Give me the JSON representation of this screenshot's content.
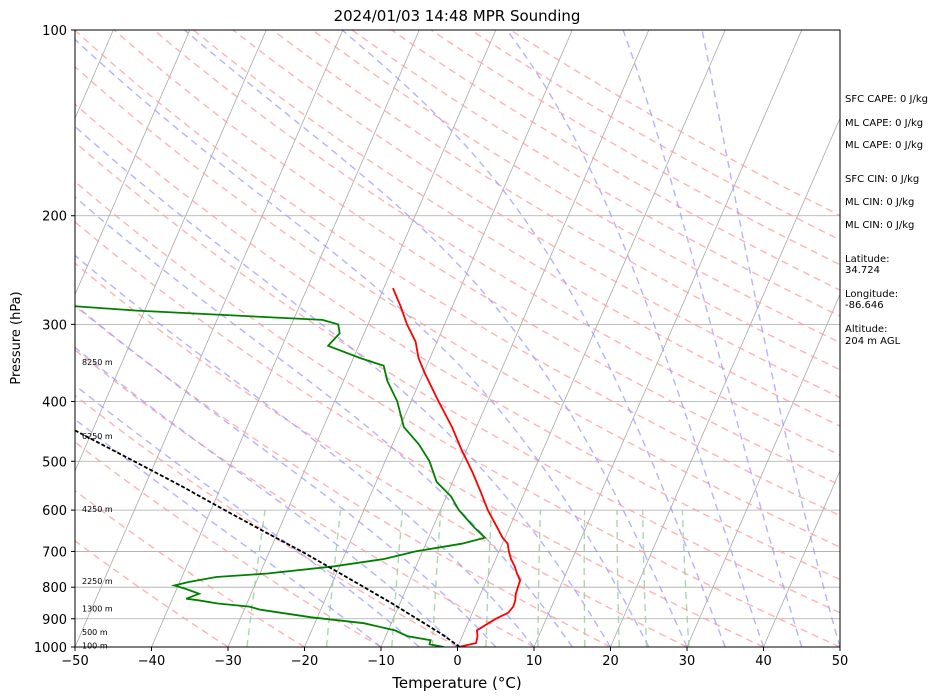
{
  "chart_data": {
    "type": "line",
    "title": "2024/01/03 14:48 MPR Sounding",
    "xlabel": "Temperature (°C)",
    "ylabel": "Pressure (hPa)",
    "xlim": [
      -50,
      50
    ],
    "ylim": [
      1000,
      100
    ],
    "y_scale": "log",
    "x_ticks": [
      -50,
      -40,
      -30,
      -20,
      -10,
      0,
      10,
      20,
      30,
      40,
      50
    ],
    "y_ticks": [
      100,
      200,
      300,
      400,
      500,
      600,
      700,
      800,
      900,
      1000
    ],
    "grid": true,
    "series": [
      {
        "color": "#ff0000",
        "points": [
          {
            "p": 1000,
            "t": 0.2
          },
          {
            "p": 985,
            "t": 2.2
          },
          {
            "p": 960,
            "t": 2.0
          },
          {
            "p": 940,
            "t": 1.6
          },
          {
            "p": 915,
            "t": 2.7
          },
          {
            "p": 900,
            "t": 3.4
          },
          {
            "p": 880,
            "t": 4.7
          },
          {
            "p": 860,
            "t": 5.0
          },
          {
            "p": 840,
            "t": 4.9
          },
          {
            "p": 820,
            "t": 4.6
          },
          {
            "p": 800,
            "t": 4.5
          },
          {
            "p": 780,
            "t": 4.4
          },
          {
            "p": 760,
            "t": 3.6
          },
          {
            "p": 740,
            "t": 2.9
          },
          {
            "p": 720,
            "t": 2.0
          },
          {
            "p": 700,
            "t": 1.3
          },
          {
            "p": 680,
            "t": 0.7
          },
          {
            "p": 665,
            "t": -0.3
          },
          {
            "p": 640,
            "t": -1.6
          },
          {
            "p": 600,
            "t": -3.8
          },
          {
            "p": 560,
            "t": -5.8
          },
          {
            "p": 520,
            "t": -8.0
          },
          {
            "p": 480,
            "t": -10.6
          },
          {
            "p": 440,
            "t": -13.2
          },
          {
            "p": 400,
            "t": -16.4
          },
          {
            "p": 360,
            "t": -19.8
          },
          {
            "p": 340,
            "t": -21.5
          },
          {
            "p": 320,
            "t": -22.8
          },
          {
            "p": 300,
            "t": -24.9
          },
          {
            "p": 280,
            "t": -26.8
          },
          {
            "p": 262,
            "t": -28.8
          }
        ]
      },
      {
        "color": "#008000",
        "points": [
          {
            "p": 1000,
            "t": -1.8
          },
          {
            "p": 990,
            "t": -3.8
          },
          {
            "p": 975,
            "t": -3.9
          },
          {
            "p": 960,
            "t": -7.2
          },
          {
            "p": 940,
            "t": -9.1
          },
          {
            "p": 915,
            "t": -13.6
          },
          {
            "p": 895,
            "t": -20.8
          },
          {
            "p": 870,
            "t": -27.9
          },
          {
            "p": 860,
            "t": -29.5
          },
          {
            "p": 850,
            "t": -33.8
          },
          {
            "p": 840,
            "t": -36.5
          },
          {
            "p": 835,
            "t": -38.2
          },
          {
            "p": 820,
            "t": -36.8
          },
          {
            "p": 805,
            "t": -38.8
          },
          {
            "p": 795,
            "t": -40.5
          },
          {
            "p": 785,
            "t": -38.9
          },
          {
            "p": 770,
            "t": -35.5
          },
          {
            "p": 760,
            "t": -29.0
          },
          {
            "p": 740,
            "t": -20.7
          },
          {
            "p": 720,
            "t": -14.6
          },
          {
            "p": 700,
            "t": -10.9
          },
          {
            "p": 680,
            "t": -5.3
          },
          {
            "p": 665,
            "t": -2.6
          },
          {
            "p": 640,
            "t": -4.6
          },
          {
            "p": 600,
            "t": -7.6
          },
          {
            "p": 570,
            "t": -9.4
          },
          {
            "p": 540,
            "t": -12.1
          },
          {
            "p": 500,
            "t": -14.2
          },
          {
            "p": 470,
            "t": -16.5
          },
          {
            "p": 440,
            "t": -19.5
          },
          {
            "p": 400,
            "t": -21.8
          },
          {
            "p": 370,
            "t": -24.3
          },
          {
            "p": 350,
            "t": -25.6
          },
          {
            "p": 340,
            "t": -29.2
          },
          {
            "p": 325,
            "t": -34.0
          },
          {
            "p": 310,
            "t": -33.2
          },
          {
            "p": 300,
            "t": -33.9
          },
          {
            "p": 295,
            "t": -36.2
          },
          {
            "p": 285,
            "t": -61.0
          },
          {
            "p": 280,
            "t": -70.0
          }
        ]
      },
      {
        "color": "#000000",
        "dashed": true,
        "points": [
          {
            "p": 1000,
            "t": 0.3
          },
          {
            "p": 950,
            "t": -3.0
          },
          {
            "p": 900,
            "t": -6.9
          },
          {
            "p": 850,
            "t": -11.0
          },
          {
            "p": 800,
            "t": -15.6
          },
          {
            "p": 750,
            "t": -20.5
          },
          {
            "p": 700,
            "t": -25.8
          },
          {
            "p": 650,
            "t": -31.8
          },
          {
            "p": 600,
            "t": -38.2
          },
          {
            "p": 550,
            "t": -45.0
          },
          {
            "p": 500,
            "t": -52.8
          },
          {
            "p": 450,
            "t": -61.5
          },
          {
            "p": 400,
            "t": -71.0
          },
          {
            "p": 350,
            "t": -82.0
          },
          {
            "p": 300,
            "t": -95.0
          },
          {
            "p": 282,
            "t": -100.0
          }
        ]
      }
    ],
    "reference_lines": {
      "isotherms_color": "#a9a9a9",
      "dry_adiabats_color": "#ff9999",
      "moist_adiabats_color": "#9999ff",
      "mixing_ratio_color": "#99cc99"
    },
    "height_labels": [
      "8250 m",
      "6250 m",
      "4250 m",
      "2250 m",
      "1300 m",
      "500 m",
      "100 m"
    ],
    "height_label_pressures": [
      345,
      455,
      598,
      782,
      866,
      946,
      995
    ]
  },
  "side_panel": {
    "sfc_cape": "SFC CAPE: 0 J/kg",
    "ml_cape_1": "ML CAPE: 0 J/kg",
    "ml_cape_2": "ML CAPE: 0 J/kg",
    "sfc_cin": "SFC CIN: 0 J/kg",
    "ml_cin_1": "ML CIN: 0 J/kg",
    "ml_cin_2": "ML CIN: 0 J/kg",
    "latitude_label": "Latitude:",
    "latitude_value": "34.724",
    "longitude_label": "Longitude:",
    "longitude_value": "-86.646",
    "altitude_label": "Altitude:",
    "altitude_value": "204 m AGL"
  }
}
